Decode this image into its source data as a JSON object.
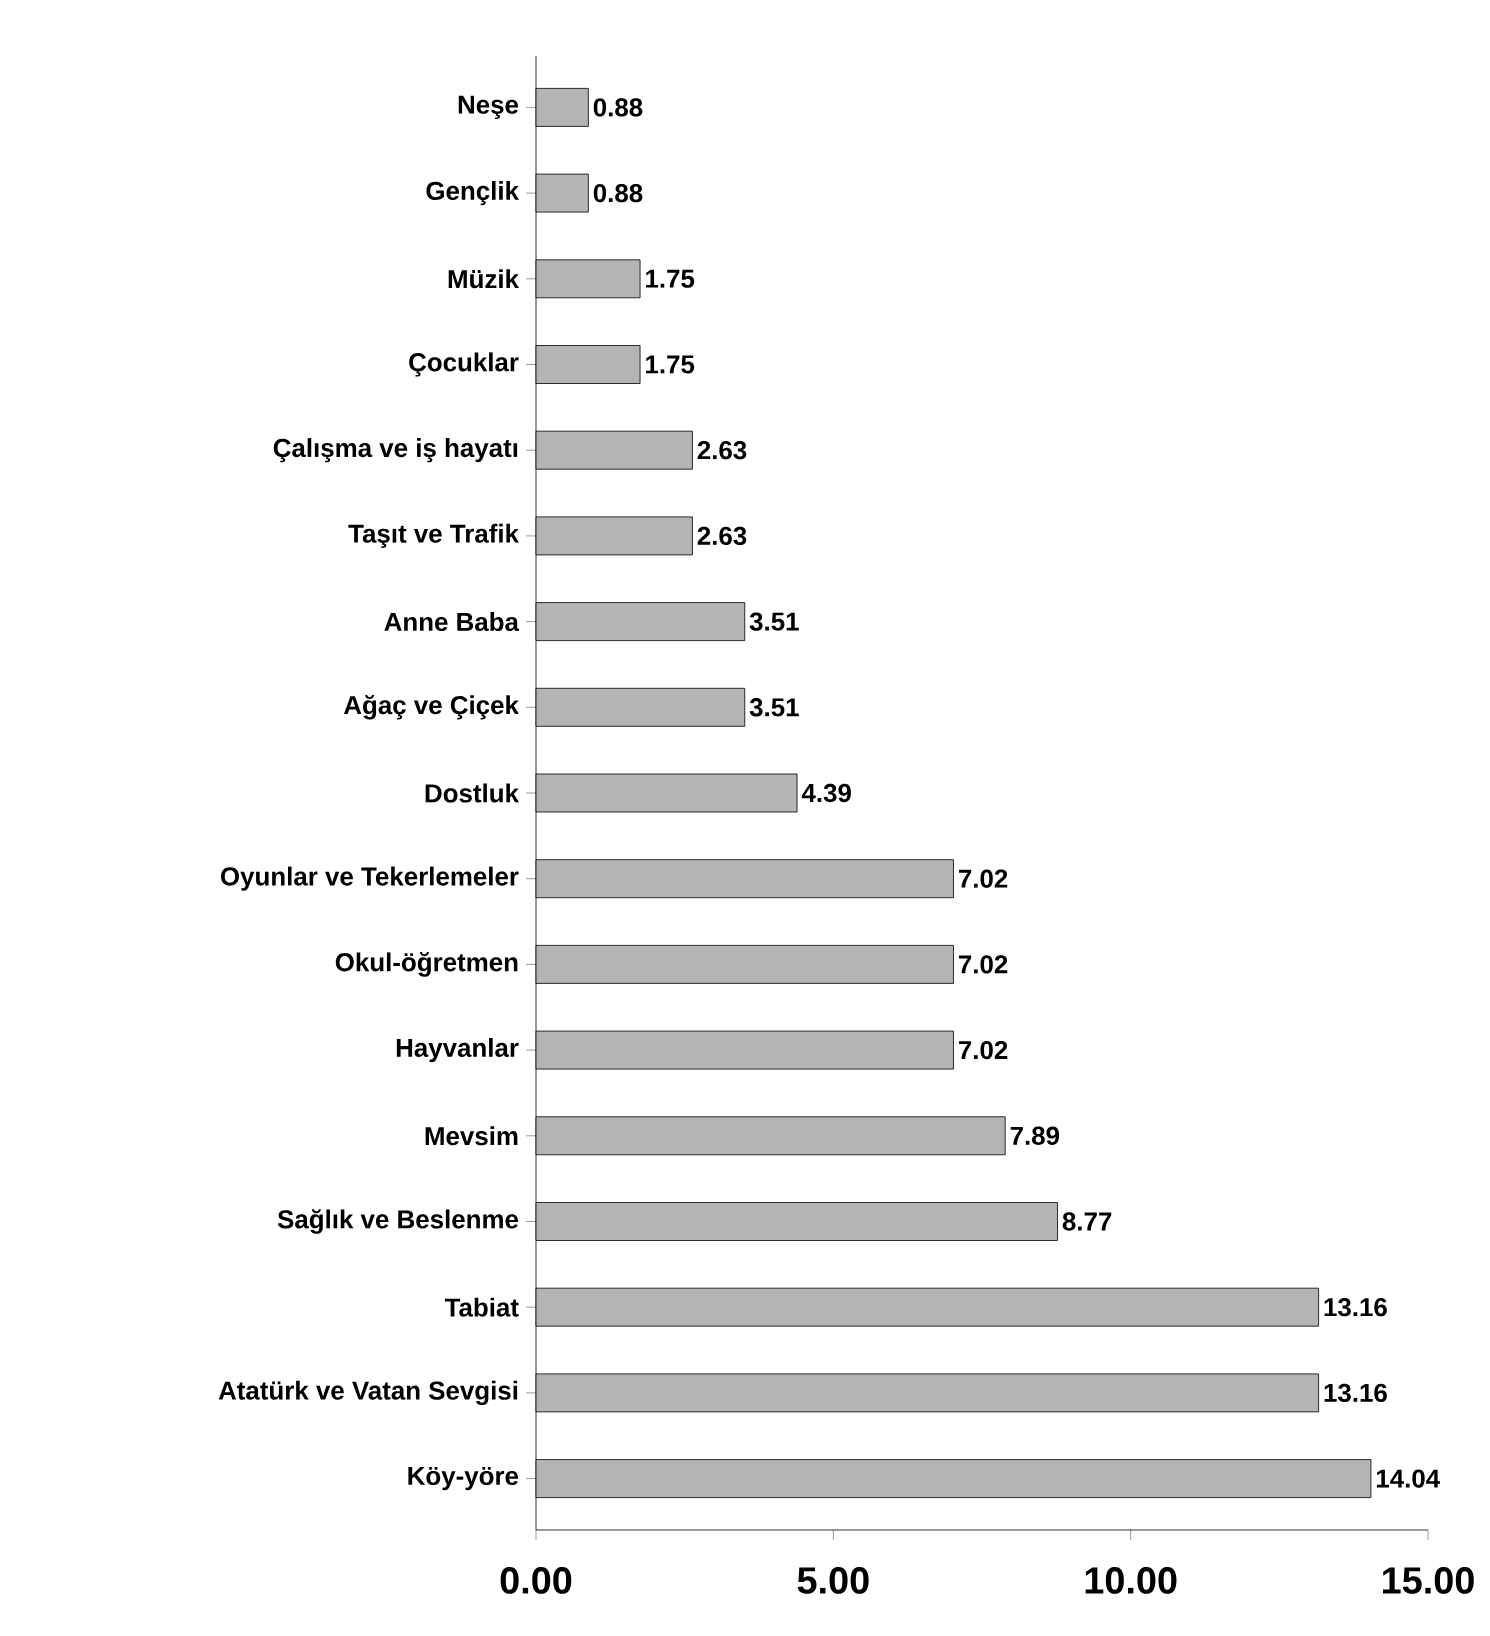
{
  "chart_data": {
    "type": "bar",
    "orientation": "horizontal",
    "categories": [
      "Neşe",
      "Gençlik",
      "Müzik",
      "Çocuklar",
      "Çalışma ve iş hayatı",
      "Taşıt ve Trafik",
      "Anne Baba",
      "Ağaç ve Çiçek",
      "Dostluk",
      "Oyunlar ve Tekerlemeler",
      "Okul-öğretmen",
      "Hayvanlar",
      "Mevsim",
      "Sağlık ve Beslenme",
      "Tabiat",
      "Atatürk ve Vatan Sevgisi",
      "Köy-yöre"
    ],
    "values": [
      0.88,
      0.88,
      1.75,
      1.75,
      2.63,
      2.63,
      3.51,
      3.51,
      4.39,
      7.02,
      7.02,
      7.02,
      7.89,
      8.77,
      13.16,
      13.16,
      14.04
    ],
    "value_labels": [
      "0.88",
      "0.88",
      "1.75",
      "1.75",
      "2.63",
      "2.63",
      "3.51",
      "3.51",
      "4.39",
      "7.02",
      "7.02",
      "7.02",
      "7.89",
      "8.77",
      "13.16",
      "13.16",
      "14.04"
    ],
    "color": "#b4b4b4",
    "xlim": [
      0,
      15
    ],
    "xticks": [
      {
        "value": 0,
        "label": "0.00"
      },
      {
        "value": 5,
        "label": "5.00"
      },
      {
        "value": 10,
        "label": "10.00"
      },
      {
        "value": 15,
        "label": "15.00"
      }
    ],
    "grid": false
  }
}
